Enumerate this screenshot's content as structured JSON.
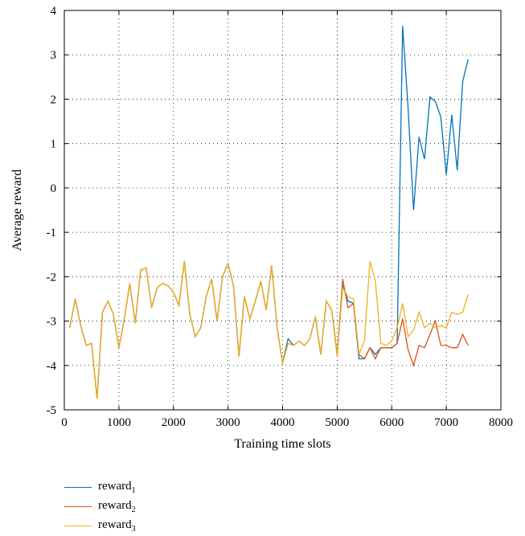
{
  "chart_data": {
    "type": "line",
    "xlabel": "Training time slots",
    "ylabel": "Average reward",
    "xlim": [
      0,
      8000
    ],
    "ylim": [
      -5,
      4
    ],
    "xticks": [
      0,
      1000,
      2000,
      3000,
      4000,
      5000,
      6000,
      7000,
      8000
    ],
    "yticks": [
      -5,
      -4,
      -3,
      -2,
      -1,
      0,
      1,
      2,
      3,
      4
    ],
    "grid": true,
    "grid_style": "dotted",
    "legend_position": "bottom-left, below chart",
    "x": [
      100,
      200,
      300,
      400,
      500,
      600,
      700,
      800,
      900,
      1000,
      1100,
      1200,
      1300,
      1400,
      1500,
      1600,
      1700,
      1800,
      1900,
      2000,
      2100,
      2200,
      2300,
      2400,
      2500,
      2600,
      2700,
      2800,
      2900,
      3000,
      3100,
      3200,
      3300,
      3400,
      3500,
      3600,
      3700,
      3800,
      3900,
      4000,
      4100,
      4200,
      4300,
      4400,
      4500,
      4600,
      4700,
      4800,
      4900,
      5000,
      5100,
      5200,
      5300,
      5400,
      5500,
      5600,
      5700,
      5800,
      5900,
      6000,
      6100,
      6200,
      6300,
      6400,
      6500,
      6600,
      6700,
      6800,
      6900,
      7000,
      7100,
      7200,
      7300,
      7400
    ],
    "series": [
      {
        "name": "reward",
        "subscript": "1",
        "color": "#0072BD",
        "values": [
          -3.15,
          -2.5,
          -3.1,
          -3.55,
          -3.5,
          -4.75,
          -2.8,
          -2.55,
          -2.85,
          -3.6,
          -2.95,
          -2.15,
          -3.05,
          -1.85,
          -1.8,
          -2.7,
          -2.25,
          -2.15,
          -2.2,
          -2.35,
          -2.65,
          -1.65,
          -2.85,
          -3.35,
          -3.15,
          -2.45,
          -2.05,
          -3.0,
          -2.0,
          -1.7,
          -2.2,
          -3.8,
          -2.45,
          -2.95,
          -2.55,
          -2.1,
          -2.75,
          -1.75,
          -3.15,
          -3.95,
          -3.4,
          -3.55,
          -3.45,
          -3.55,
          -3.4,
          -2.9,
          -3.75,
          -2.55,
          -2.75,
          -3.75,
          -2.2,
          -2.55,
          -2.6,
          -3.85,
          -3.85,
          -3.6,
          -3.75,
          -3.6,
          -3.6,
          -3.6,
          -3.5,
          3.65,
          1.8,
          -0.5,
          1.15,
          0.65,
          2.05,
          1.95,
          1.6,
          0.3,
          1.65,
          0.4,
          2.4,
          2.9
        ]
      },
      {
        "name": "reward",
        "subscript": "2",
        "color": "#D95319",
        "values": [
          -3.15,
          -2.5,
          -3.1,
          -3.55,
          -3.5,
          -4.75,
          -2.8,
          -2.55,
          -2.85,
          -3.6,
          -2.95,
          -2.15,
          -3.05,
          -1.85,
          -1.8,
          -2.7,
          -2.25,
          -2.15,
          -2.2,
          -2.35,
          -2.65,
          -1.65,
          -2.85,
          -3.35,
          -3.15,
          -2.45,
          -2.05,
          -3.0,
          -2.0,
          -1.7,
          -2.2,
          -3.8,
          -2.45,
          -2.95,
          -2.55,
          -2.1,
          -2.75,
          -1.75,
          -3.15,
          -3.95,
          -3.5,
          -3.55,
          -3.45,
          -3.55,
          -3.4,
          -2.9,
          -3.75,
          -2.55,
          -2.75,
          -3.8,
          -2.05,
          -2.7,
          -2.6,
          -3.75,
          -3.85,
          -3.6,
          -3.85,
          -3.6,
          -3.6,
          -3.6,
          -3.5,
          -2.95,
          -3.65,
          -4.0,
          -3.55,
          -3.6,
          -3.3,
          -3.0,
          -3.55,
          -3.55,
          -3.6,
          -3.6,
          -3.3,
          -3.55
        ]
      },
      {
        "name": "reward",
        "subscript": "3",
        "color": "#EDB120",
        "values": [
          -3.15,
          -2.5,
          -3.1,
          -3.55,
          -3.5,
          -4.75,
          -2.8,
          -2.55,
          -2.85,
          -3.6,
          -2.95,
          -2.15,
          -3.05,
          -1.85,
          -1.8,
          -2.7,
          -2.25,
          -2.15,
          -2.2,
          -2.35,
          -2.65,
          -1.65,
          -2.85,
          -3.35,
          -3.15,
          -2.45,
          -2.05,
          -3.0,
          -2.0,
          -1.7,
          -2.2,
          -3.8,
          -2.45,
          -2.95,
          -2.55,
          -2.1,
          -2.75,
          -1.75,
          -3.15,
          -3.95,
          -3.5,
          -3.55,
          -3.45,
          -3.55,
          -3.4,
          -2.9,
          -3.75,
          -2.55,
          -2.75,
          -3.8,
          -2.25,
          -2.45,
          -2.5,
          -3.75,
          -3.45,
          -1.65,
          -2.1,
          -3.5,
          -3.55,
          -3.45,
          -3.15,
          -2.6,
          -3.35,
          -3.2,
          -2.8,
          -3.15,
          -3.05,
          -3.15,
          -3.1,
          -3.15,
          -2.8,
          -2.85,
          -2.8,
          -2.4
        ]
      }
    ]
  }
}
